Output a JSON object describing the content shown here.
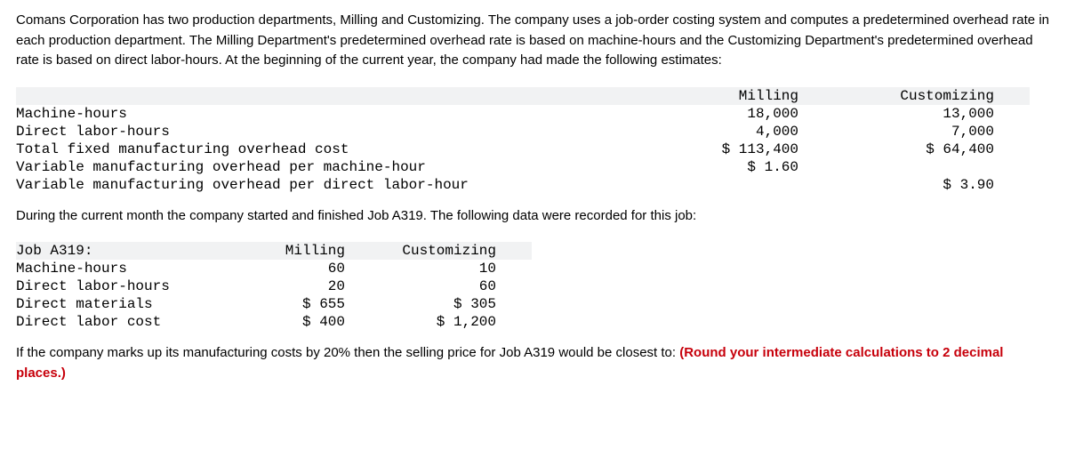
{
  "intro": "Comans Corporation has two production departments, Milling and Customizing. The company uses a job-order costing system and computes a predetermined overhead rate in each production department. The Milling Department's predetermined overhead rate is based on machine-hours and the Customizing Department's predetermined overhead rate is based on direct labor-hours. At the beginning of the current year, the company had made the following estimates:",
  "table1": {
    "head_milling": "Milling",
    "head_custom": "Customizing",
    "rows": [
      {
        "label": "Machine-hours",
        "mill": "18,000",
        "cust": "13,000"
      },
      {
        "label": "Direct labor-hours",
        "mill": "4,000",
        "cust": "7,000"
      },
      {
        "label": "Total fixed manufacturing overhead cost",
        "mill": "$ 113,400",
        "cust": "$ 64,400"
      },
      {
        "label": "Variable manufacturing overhead per machine-hour",
        "mill": "$ 1.60",
        "cust": ""
      },
      {
        "label": "Variable manufacturing overhead per direct labor-hour",
        "mill": "",
        "cust": "$ 3.90"
      }
    ]
  },
  "mid_text": "During the current month the company started and finished Job A319. The following data were recorded for this job:",
  "table2": {
    "head_label": "Job A319:",
    "head_milling": "Milling",
    "head_custom": "Customizing",
    "rows": [
      {
        "label": "Machine-hours",
        "mill": "60",
        "cust": "10"
      },
      {
        "label": "Direct labor-hours",
        "mill": "20",
        "cust": "60"
      },
      {
        "label": "Direct materials",
        "mill": "$ 655",
        "cust": "$ 305"
      },
      {
        "label": "Direct labor cost",
        "mill": "$ 400",
        "cust": "$ 1,200"
      }
    ]
  },
  "question_part1": "If the company marks up its manufacturing costs by 20% then the selling price for Job A319 would be closest to: ",
  "question_part2": "(Round your intermediate calculations to 2 decimal places.)"
}
